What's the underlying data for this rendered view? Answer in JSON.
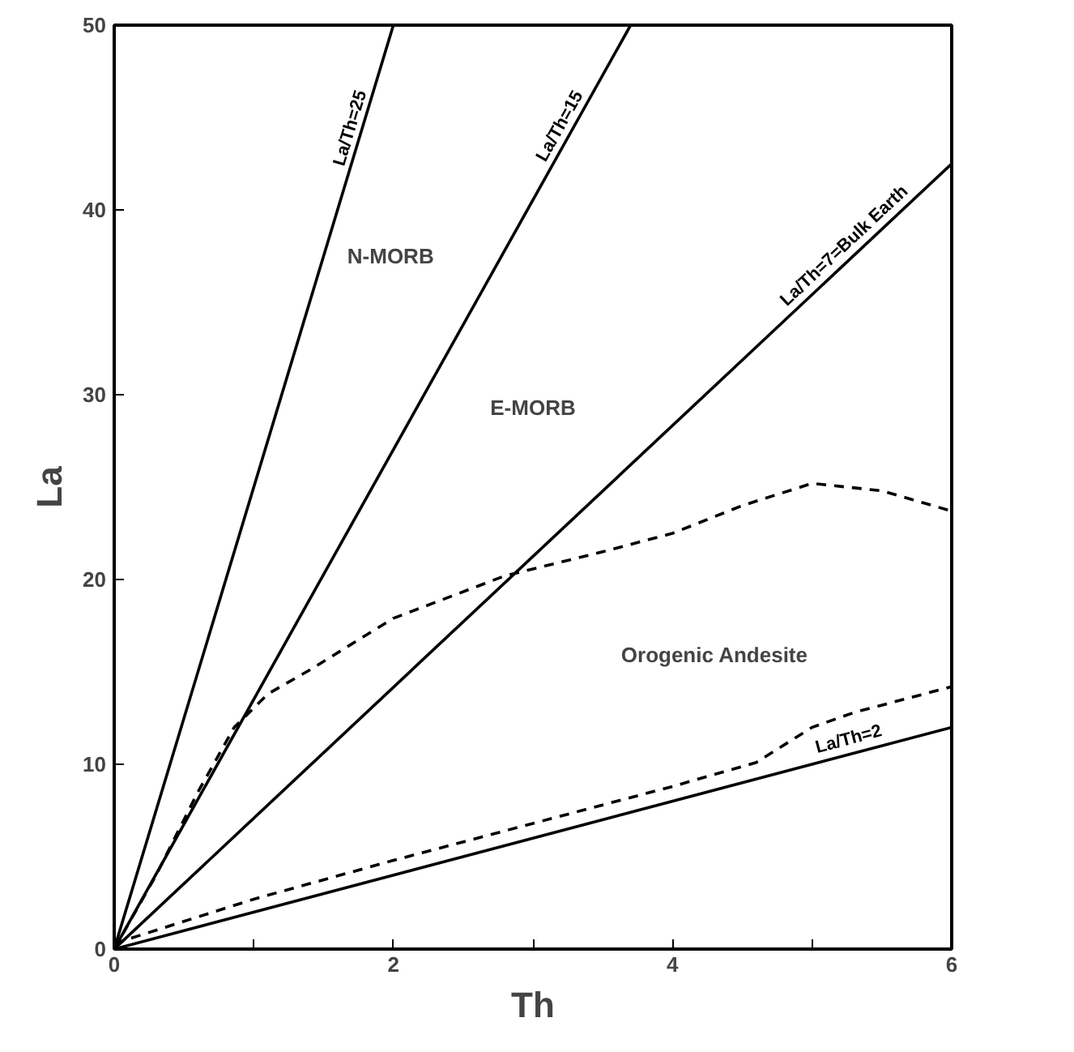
{
  "chart_data": {
    "type": "line",
    "xlabel": "Th",
    "ylabel": "La",
    "xlim": [
      0,
      6
    ],
    "ylim": [
      0,
      50
    ],
    "xticks": [
      0,
      {
        "value": 1,
        "label": null
      },
      2,
      {
        "value": 3,
        "label": null
      },
      4,
      {
        "value": 5,
        "label": null
      },
      6
    ],
    "yticks": [
      0,
      10,
      20,
      30,
      40,
      50
    ],
    "grid": false,
    "marker": "none",
    "series": [
      {
        "name": "La/Th=25",
        "color": "#000000",
        "x": [
          0,
          2
        ],
        "values": [
          0,
          50
        ],
        "line_style": "solid"
      },
      {
        "name": "La/Th=15",
        "color": "#000000",
        "x": [
          0,
          3.7
        ],
        "values": [
          0,
          50
        ],
        "line_style": "solid"
      },
      {
        "name": "La/Th=7=Bulk Earth",
        "color": "#000000",
        "x": [
          0,
          6
        ],
        "values": [
          0,
          42.5
        ],
        "line_style": "solid"
      },
      {
        "name": "La/Th=2",
        "color": "#000000",
        "x": [
          0,
          6
        ],
        "values": [
          0,
          12
        ],
        "line_style": "solid"
      },
      {
        "color": "#000000",
        "x": [
          0,
          0.3,
          0.6,
          0.86,
          1.1,
          1.4,
          2,
          2.8,
          3.5,
          4,
          4.5,
          5,
          5.5,
          6
        ],
        "values": [
          0,
          4,
          8.5,
          12,
          13.8,
          15.1,
          17.9,
          20.2,
          21.5,
          22.5,
          24,
          25.2,
          24.8,
          23.7
        ],
        "line_style": "dashed"
      },
      {
        "color": "#000000",
        "x": [
          0,
          1,
          2,
          3,
          4,
          4.6,
          5,
          5.3,
          6
        ],
        "values": [
          0.3,
          2.7,
          4.8,
          6.8,
          8.8,
          10.1,
          12,
          12.8,
          14.2
        ],
        "line_style": "dashed"
      }
    ],
    "annotations": [
      "N-MORB",
      "E-MORB",
      "Orogenic Andesite"
    ]
  }
}
